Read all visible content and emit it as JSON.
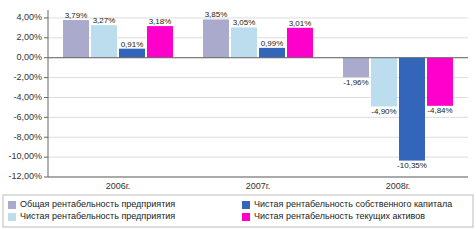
{
  "chart_data": {
    "type": "bar",
    "categories": [
      "2006г.",
      "2007г.",
      "2008г."
    ],
    "series": [
      {
        "name": "Общая рентабельность предприятия",
        "color": "#AAAACC",
        "values": [
          3.79,
          3.85,
          -1.96
        ],
        "value_labels": [
          "3,79%",
          "3,85%",
          "-1,96%"
        ]
      },
      {
        "name": "Чистая рентабельность предприятия",
        "color": "#BBDDEE",
        "values": [
          3.27,
          3.05,
          -4.9
        ],
        "value_labels": [
          "3,27%",
          "3,05%",
          "-4,90%"
        ]
      },
      {
        "name": "Чистая рентабельность собственного капитала",
        "color": "#3366BB",
        "values": [
          0.91,
          0.99,
          -10.35
        ],
        "value_labels": [
          "0,91%",
          "0,99%",
          "-10,35%"
        ]
      },
      {
        "name": "Чистая рентабельность текущих активов",
        "color": "#FF00CC",
        "values": [
          3.18,
          3.01,
          -4.84
        ],
        "value_labels": [
          "3,18%",
          "3,01%",
          "-4,84%"
        ]
      }
    ],
    "ylim": [
      -12.0,
      4.8
    ],
    "yticks": [
      {
        "value": 4.0,
        "label": "4,00%"
      },
      {
        "value": 2.0,
        "label": "2,00%"
      },
      {
        "value": 0.0,
        "label": "0,00%"
      },
      {
        "value": -2.0,
        "label": "-2,00%"
      },
      {
        "value": -4.0,
        "label": "-4,00%"
      },
      {
        "value": -6.0,
        "label": "-6,00%"
      },
      {
        "value": -8.0,
        "label": "-8,00%"
      },
      {
        "value": -10.0,
        "label": "-10,00%"
      },
      {
        "value": -12.0,
        "label": "-12,00%"
      }
    ],
    "grid": true,
    "data_labels": true,
    "legend": "bottom"
  }
}
